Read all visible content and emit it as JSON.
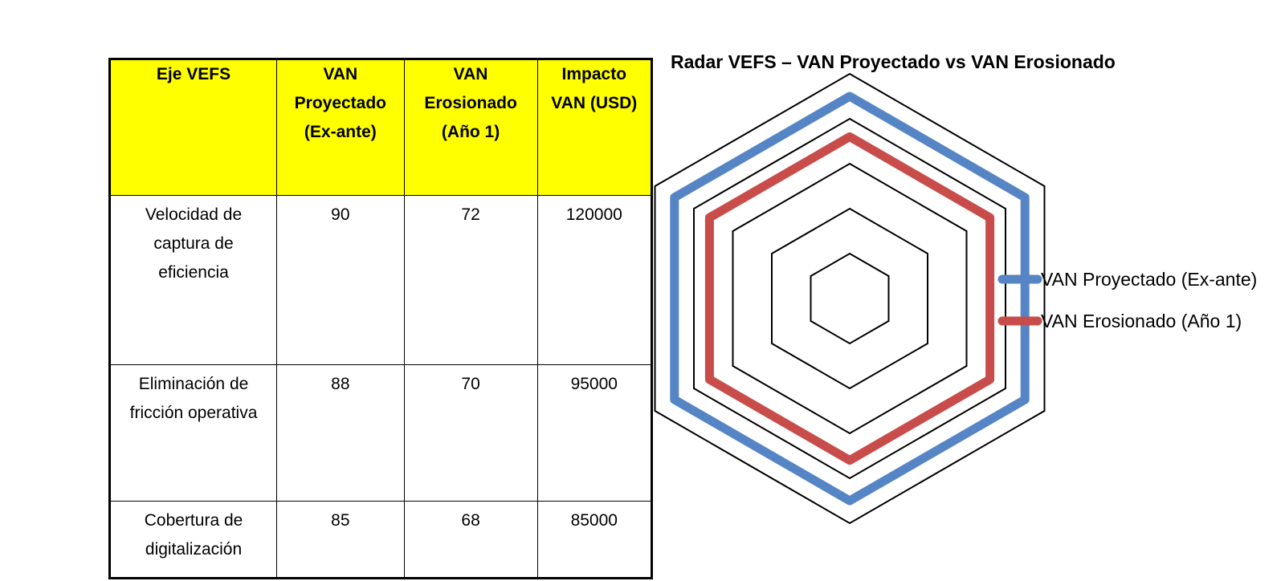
{
  "table": {
    "headers": [
      "Eje VEFS",
      "VAN\nProyectado\n(Ex-ante)",
      "VAN\nErosionado\n(Año 1)",
      "Impacto\nVAN (USD)"
    ],
    "rows": [
      [
        "Velocidad de\ncaptura de\neficiencia",
        "90",
        "72",
        "120000"
      ],
      [
        "Eliminación de\nfricción operativa",
        "88",
        "70",
        "95000"
      ],
      [
        "Cobertura de\ndigitalización",
        "85",
        "68",
        "85000"
      ]
    ],
    "header_bg": "#ffff00"
  },
  "chart_data": {
    "type": "radar",
    "title": "Radar VEFS – VAN Proyectado vs VAN Erosionado",
    "axes_count": 6,
    "grid": true,
    "rings": [
      20,
      40,
      60,
      80,
      100
    ],
    "range": [
      0,
      100
    ],
    "legend_position": "right",
    "series": [
      {
        "name": "VAN Proyectado (Ex-ante)",
        "color": "#5585c5",
        "values": [
          90,
          90,
          90,
          90,
          90,
          90
        ]
      },
      {
        "name": "VAN Erosionado (Año 1)",
        "color": "#c84c4a",
        "values": [
          72,
          72,
          72,
          72,
          72,
          72
        ]
      }
    ]
  }
}
